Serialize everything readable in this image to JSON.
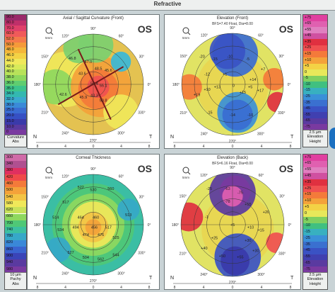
{
  "header": {
    "title": "Refractive"
  },
  "panels": [
    {
      "title": "Axial / Sagittal Curvature (Front)",
      "subtitle": "",
      "eye": "OS",
      "labels": [
        "46.8",
        "47.0",
        "48.5",
        "45.6",
        "43.6",
        "50.4",
        "55.1",
        "45.9",
        "43.3",
        "50.8",
        "42.6"
      ],
      "tool": "5mm",
      "compass": [
        "N",
        "T"
      ],
      "ticks": [
        "8",
        "4",
        "0",
        "4",
        "8"
      ],
      "angles": [
        "90°",
        "60°",
        "30°",
        "0°",
        "330°",
        "300°",
        "270°",
        "240°",
        "210°",
        "180°",
        "150°",
        "120°"
      ]
    },
    {
      "title": "Elevation (Front)",
      "subtitle": "BFS=7.40 Float, Dia=8.00",
      "eye": "OS",
      "labels": [
        "-20",
        "-15",
        "-10",
        "-5",
        "0",
        "+5",
        "+10",
        "+15",
        "+17",
        "+13",
        "+14",
        "+19",
        "-15",
        "-14",
        "-10",
        "-12",
        "+7",
        "+1"
      ],
      "tool": "5mm",
      "compass": [
        "N",
        "T"
      ],
      "ticks": [
        "8",
        "4",
        "0",
        "4",
        "8"
      ],
      "angles": [
        "90°",
        "60°",
        "30°",
        "0°",
        "330°",
        "300°",
        "270°",
        "240°",
        "210°",
        "180°",
        "150°",
        "120°"
      ]
    },
    {
      "title": "Corneal Thickness",
      "subtitle": "",
      "eye": "OS",
      "labels": [
        "522",
        "530",
        "560",
        "517",
        "464",
        "460",
        "494",
        "456",
        "517",
        "474",
        "476",
        "525",
        "534",
        "527",
        "504",
        "562",
        "544",
        "513",
        "514"
      ],
      "tool": "5mm",
      "compass": [
        "N",
        "T"
      ],
      "ticks": [
        "8",
        "4",
        "0",
        "4",
        "8"
      ],
      "angles": [
        "90°",
        "60°",
        "30°",
        "0°",
        "330°",
        "300°",
        "270°",
        "240°",
        "210°",
        "180°",
        "150°",
        "120°"
      ]
    },
    {
      "title": "Elevation (Back)",
      "subtitle": "BFS=6.16 Float, Dia=8.00",
      "eye": "OS",
      "labels": [
        "-25",
        "-63",
        "-75",
        "-78",
        "+15",
        "-1",
        "+5",
        "+10",
        "+25",
        "+30",
        "+15",
        "+40",
        "+50",
        "+55",
        "+30",
        "+20"
      ],
      "tool": "5mm",
      "compass": [
        "N",
        "T"
      ],
      "ticks": [
        "8",
        "4",
        "0",
        "4",
        "8"
      ],
      "angles": [
        "90°",
        "60°",
        "30°",
        "0°",
        "330°",
        "300°",
        "270°",
        "240°",
        "210°",
        "180°",
        "150°",
        "120°"
      ]
    }
  ],
  "scales": [
    {
      "values": [
        "90.0",
        "80.0",
        "70.0",
        "60.0",
        "52.0",
        "50.0",
        "48.0",
        "46.0",
        "44.0",
        "42.0",
        "40.0",
        "38.0",
        "36.0",
        "35.0",
        "34.0",
        "32.0",
        "30.0",
        "25.0",
        "20.0",
        "15.0",
        "10.0",
        "0"
      ],
      "colors": [
        "#9a2a6a",
        "#c0306a",
        "#e0406a",
        "#f05a5a",
        "#f47a4a",
        "#f59a3a",
        "#f4b73a",
        "#f3d245",
        "#f0e85a",
        "#d8ea5a",
        "#b8e25a",
        "#8ed85e",
        "#5fcd70",
        "#3cc48c",
        "#33b8b0",
        "#3aa8d0",
        "#3a8ad8",
        "#3a6cd2",
        "#3650c4",
        "#3a3aaa",
        "#5a3aa0",
        "#7a3aa0"
      ],
      "footer": [
        "Curvature",
        "Abs"
      ]
    },
    {
      "values": [
        "+75",
        "+65",
        "+55",
        "+45",
        "+35",
        "+25",
        "+15",
        "+10",
        "+5",
        "0",
        "-5",
        "-10",
        "-15",
        "-25",
        "-35",
        "-45",
        "-55",
        "-65",
        "-75"
      ],
      "colors": [
        "#e040a0",
        "#e060b0",
        "#e080c0",
        "#d050a0",
        "#e03040",
        "#f05050",
        "#f47a3a",
        "#f4a23a",
        "#f3d245",
        "#e8e85a",
        "#80d060",
        "#40c080",
        "#38b0c0",
        "#3a90d8",
        "#3a70d0",
        "#3a52c4",
        "#4040b0",
        "#5a3aa0",
        "#7a3aa0"
      ],
      "footer": [
        "2.5 µm",
        "Elevation",
        "Height"
      ]
    },
    {
      "values": [
        "300",
        "340",
        "380",
        "420",
        "460",
        "500",
        "540",
        "580",
        "620",
        "660",
        "700",
        "740",
        "780",
        "820",
        "860",
        "900",
        "940",
        "980"
      ],
      "colors": [
        "#d06aa8",
        "#b05090",
        "#e03060",
        "#f04a4a",
        "#f47a3a",
        "#f4a23a",
        "#f3c445",
        "#f0e85a",
        "#c8e25a",
        "#8ed85e",
        "#4fc876",
        "#3cc0a0",
        "#36a8c8",
        "#3a88d8",
        "#3a64d0",
        "#3a44b8",
        "#5a3aa0",
        "#7a3aa0"
      ],
      "footer": [
        "10 µm",
        "Pachy",
        "Abs"
      ]
    },
    {
      "values": [
        "+75",
        "+65",
        "+55",
        "+45",
        "+35",
        "+25",
        "+15",
        "+10",
        "+5",
        "0",
        "-5",
        "-10",
        "-15",
        "-25",
        "-35",
        "-45",
        "-55",
        "-65",
        "-75"
      ],
      "colors": [
        "#e040a0",
        "#e060b0",
        "#e080c0",
        "#d050a0",
        "#e03040",
        "#f05050",
        "#f47a3a",
        "#f4a23a",
        "#f3d245",
        "#e8e85a",
        "#80d060",
        "#40c080",
        "#38b0c0",
        "#3a90d8",
        "#3a70d0",
        "#3a52c4",
        "#4040b0",
        "#5a3aa0",
        "#7a3aa0"
      ],
      "footer": [
        "2.5 µm",
        "Elevation",
        "Height"
      ]
    }
  ]
}
